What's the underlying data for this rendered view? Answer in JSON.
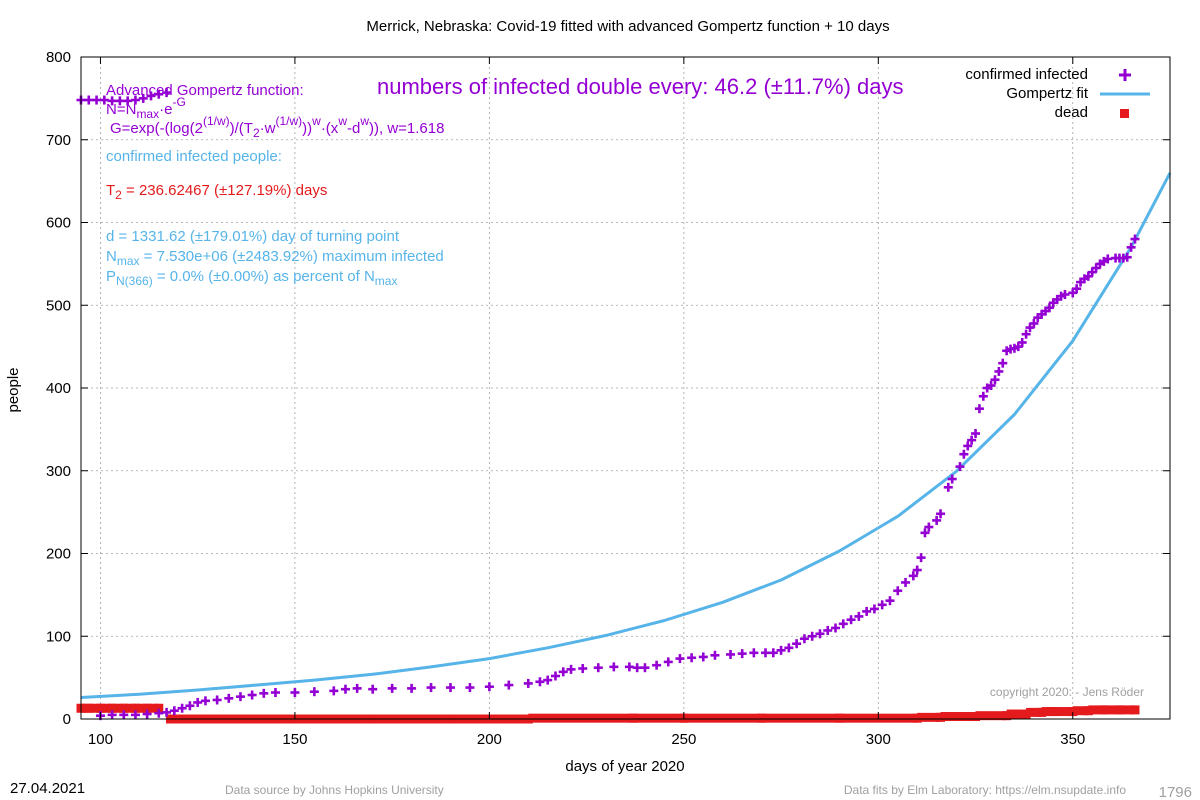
{
  "chart_data": {
    "type": "scatter",
    "title": "Merrick,  Nebraska: Covid-19 fitted with advanced Gompertz function + 10 days",
    "xlabel": "days of year 2020",
    "ylabel": "people",
    "xlim": [
      95,
      375
    ],
    "ylim": [
      0,
      800
    ],
    "x_ticks": [
      100,
      150,
      200,
      250,
      300,
      350
    ],
    "y_ticks": [
      0,
      100,
      200,
      300,
      400,
      500,
      600,
      700,
      800
    ],
    "grid": true,
    "legend_position": "top-right",
    "series": [
      {
        "name": "confirmed infected",
        "color": "#9400d3",
        "marker": "plus",
        "points": [
          [
            95,
            748
          ],
          [
            97,
            748
          ],
          [
            99,
            748
          ],
          [
            101,
            748
          ],
          [
            103,
            747
          ],
          [
            105,
            747
          ],
          [
            107,
            747
          ],
          [
            109,
            748
          ],
          [
            111,
            750
          ],
          [
            113,
            753
          ],
          [
            115,
            755
          ],
          [
            117,
            757
          ],
          [
            100,
            4
          ],
          [
            103,
            5
          ],
          [
            106,
            5
          ],
          [
            109,
            5
          ],
          [
            112,
            6
          ],
          [
            115,
            7
          ],
          [
            117,
            8
          ],
          [
            119,
            10
          ],
          [
            121,
            13
          ],
          [
            123,
            16
          ],
          [
            125,
            20
          ],
          [
            127,
            22
          ],
          [
            130,
            23
          ],
          [
            133,
            25
          ],
          [
            136,
            27
          ],
          [
            139,
            29
          ],
          [
            142,
            31
          ],
          [
            145,
            32
          ],
          [
            150,
            32
          ],
          [
            155,
            33
          ],
          [
            160,
            34
          ],
          [
            163,
            36
          ],
          [
            166,
            37
          ],
          [
            170,
            36
          ],
          [
            175,
            37
          ],
          [
            180,
            37
          ],
          [
            185,
            38
          ],
          [
            190,
            38
          ],
          [
            195,
            38
          ],
          [
            200,
            39
          ],
          [
            205,
            41
          ],
          [
            210,
            43
          ],
          [
            213,
            45
          ],
          [
            215,
            47
          ],
          [
            217,
            52
          ],
          [
            219,
            57
          ],
          [
            221,
            60
          ],
          [
            224,
            61
          ],
          [
            228,
            62
          ],
          [
            232,
            63
          ],
          [
            236,
            63
          ],
          [
            238,
            62
          ],
          [
            240,
            62
          ],
          [
            243,
            65
          ],
          [
            246,
            69
          ],
          [
            249,
            73
          ],
          [
            252,
            74
          ],
          [
            255,
            75
          ],
          [
            258,
            77
          ],
          [
            262,
            78
          ],
          [
            265,
            79
          ],
          [
            268,
            80
          ],
          [
            271,
            80
          ],
          [
            273,
            80
          ],
          [
            275,
            83
          ],
          [
            277,
            86
          ],
          [
            279,
            91
          ],
          [
            281,
            97
          ],
          [
            283,
            100
          ],
          [
            285,
            103
          ],
          [
            287,
            107
          ],
          [
            289,
            110
          ],
          [
            291,
            115
          ],
          [
            293,
            120
          ],
          [
            295,
            124
          ],
          [
            297,
            130
          ],
          [
            299,
            133
          ],
          [
            301,
            138
          ],
          [
            303,
            143
          ],
          [
            305,
            155
          ],
          [
            307,
            165
          ],
          [
            309,
            173
          ],
          [
            310,
            180
          ],
          [
            311,
            195
          ],
          [
            312,
            225
          ],
          [
            313,
            232
          ],
          [
            315,
            240
          ],
          [
            316,
            248
          ],
          [
            318,
            280
          ],
          [
            319,
            290
          ],
          [
            321,
            305
          ],
          [
            322,
            320
          ],
          [
            323,
            330
          ],
          [
            324,
            337
          ],
          [
            325,
            345
          ],
          [
            326,
            375
          ],
          [
            327,
            390
          ],
          [
            328,
            400
          ],
          [
            329,
            403
          ],
          [
            330,
            410
          ],
          [
            331,
            420
          ],
          [
            332,
            430
          ],
          [
            333,
            445
          ],
          [
            334,
            447
          ],
          [
            335,
            448
          ],
          [
            336,
            450
          ],
          [
            337,
            455
          ],
          [
            338,
            465
          ],
          [
            339,
            473
          ],
          [
            340,
            478
          ],
          [
            341,
            485
          ],
          [
            342,
            489
          ],
          [
            343,
            493
          ],
          [
            344,
            497
          ],
          [
            345,
            503
          ],
          [
            346,
            507
          ],
          [
            347,
            511
          ],
          [
            348,
            513
          ],
          [
            350,
            515
          ],
          [
            351,
            520
          ],
          [
            352,
            528
          ],
          [
            353,
            532
          ],
          [
            354,
            535
          ],
          [
            355,
            540
          ],
          [
            356,
            545
          ],
          [
            357,
            550
          ],
          [
            358,
            553
          ],
          [
            359,
            556
          ],
          [
            361,
            557
          ],
          [
            362,
            557
          ],
          [
            363,
            557
          ],
          [
            364,
            558
          ],
          [
            365,
            570
          ],
          [
            366,
            580
          ]
        ]
      },
      {
        "name": "Gompertz fit",
        "color": "#56b4e9",
        "marker": "line",
        "points": [
          [
            95,
            26
          ],
          [
            110,
            30
          ],
          [
            125,
            35
          ],
          [
            140,
            41
          ],
          [
            155,
            47
          ],
          [
            170,
            54
          ],
          [
            185,
            63
          ],
          [
            200,
            73
          ],
          [
            215,
            86
          ],
          [
            230,
            101
          ],
          [
            245,
            119
          ],
          [
            260,
            141
          ],
          [
            275,
            168
          ],
          [
            290,
            203
          ],
          [
            305,
            245
          ],
          [
            320,
            299
          ],
          [
            335,
            368
          ],
          [
            350,
            457
          ],
          [
            365,
            570
          ],
          [
            375,
            660
          ]
        ]
      },
      {
        "name": "dead",
        "color": "#e41a1c",
        "marker": "square",
        "points": [
          [
            95,
            13
          ],
          [
            97,
            13
          ],
          [
            100,
            13
          ],
          [
            103,
            13
          ],
          [
            106,
            13
          ],
          [
            109,
            13
          ],
          [
            112,
            13
          ],
          [
            115,
            13
          ],
          [
            118,
            0
          ],
          [
            130,
            0
          ],
          [
            150,
            0
          ],
          [
            170,
            0
          ],
          [
            190,
            0
          ],
          [
            210,
            0
          ],
          [
            237,
            1
          ],
          [
            250,
            1
          ],
          [
            270,
            1
          ],
          [
            290,
            1
          ],
          [
            310,
            1
          ],
          [
            316,
            2
          ],
          [
            325,
            3
          ],
          [
            333,
            4
          ],
          [
            338,
            6
          ],
          [
            342,
            8
          ],
          [
            345,
            9
          ],
          [
            350,
            9
          ],
          [
            354,
            10
          ],
          [
            358,
            11
          ],
          [
            362,
            11
          ],
          [
            366,
            11
          ]
        ]
      }
    ]
  },
  "annotations": {
    "gompertz_title": "Advanced Gompertz function:",
    "doubling_text": "numbers of infected double every: 46.2 (±11.7%) days",
    "formula_n": "N=N",
    "formula_n_sub": "max",
    "formula_n_rest": "·e",
    "formula_n_sup": "-G",
    "formula_g_1": "G=exp(-(log(2",
    "formula_g_sup1": "(1/w)",
    "formula_g_2": ")/(T",
    "formula_g_sub2": "2",
    "formula_g_3": "·w",
    "formula_g_sup3": "(1/w)",
    "formula_g_4": "))",
    "formula_g_sup4": "w",
    "formula_g_5": "·(x",
    "formula_g_sup5": "w",
    "formula_g_6": "-d",
    "formula_g_sup6": "w",
    "formula_g_7": ")), w=1.618",
    "confirmed_label": "confirmed infected people:",
    "t2_prefix": "T",
    "t2_sub": "2",
    "t2_rest": " = 236.62467 (±127.19%) days",
    "d_text": "d = 1331.62 (±179.01%) day of turning point",
    "nmax_prefix": "N",
    "nmax_sub": "max",
    "nmax_rest": " = 7.530e+06 (±2483.92%) maximum infected",
    "p_prefix": "P",
    "p_sub": "N(366)",
    "p_rest": " = 0.0% (±0.00%) as percent of N",
    "p_sub2": "max",
    "copyright": "copyright 2020: - Jens Röder"
  },
  "footer": {
    "date": "27.04.2021",
    "source": "Data source by Johns Hopkins University",
    "fits": "Data fits by Elm Laboratory: https://elm.nsupdate.info",
    "number": "1796"
  },
  "colors": {
    "infected": "#9400d3",
    "fit": "#56b4e9",
    "dead": "#e41a1c",
    "t2_text": "#e41a1c",
    "info_text": "#56b4e9",
    "grid": "#a0a0a0"
  }
}
